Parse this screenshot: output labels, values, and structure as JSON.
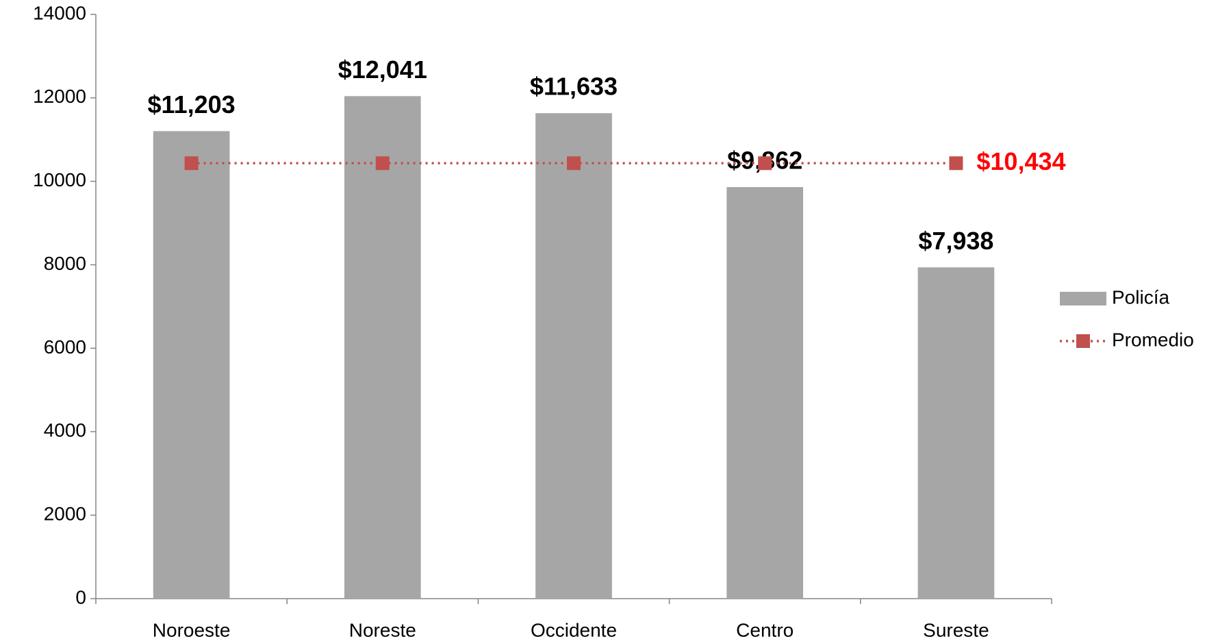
{
  "chart_data": {
    "type": "bar",
    "categories": [
      "Noroeste",
      "Noreste",
      "Occidente",
      "Centro",
      "Sureste"
    ],
    "series": [
      {
        "name": "Policía",
        "type": "bar",
        "color": "#a6a6a6",
        "values": [
          11203,
          12041,
          11633,
          9862,
          7938
        ],
        "value_labels": [
          "$11,203",
          "$12,041",
          "$11,633",
          "$9,862",
          "$7,938"
        ],
        "label_color": "#000000"
      },
      {
        "name": "Promedio",
        "type": "line",
        "color": "#c0504d",
        "values": [
          10434,
          10434,
          10434,
          10434,
          10434
        ],
        "value_labels": [
          null,
          null,
          null,
          null,
          "$10,434"
        ],
        "label_color": "#ff0000"
      }
    ],
    "ylim": [
      0,
      14000
    ],
    "yticks": [
      0,
      2000,
      4000,
      6000,
      8000,
      10000,
      12000,
      14000
    ],
    "grid": false,
    "legend": "right"
  }
}
